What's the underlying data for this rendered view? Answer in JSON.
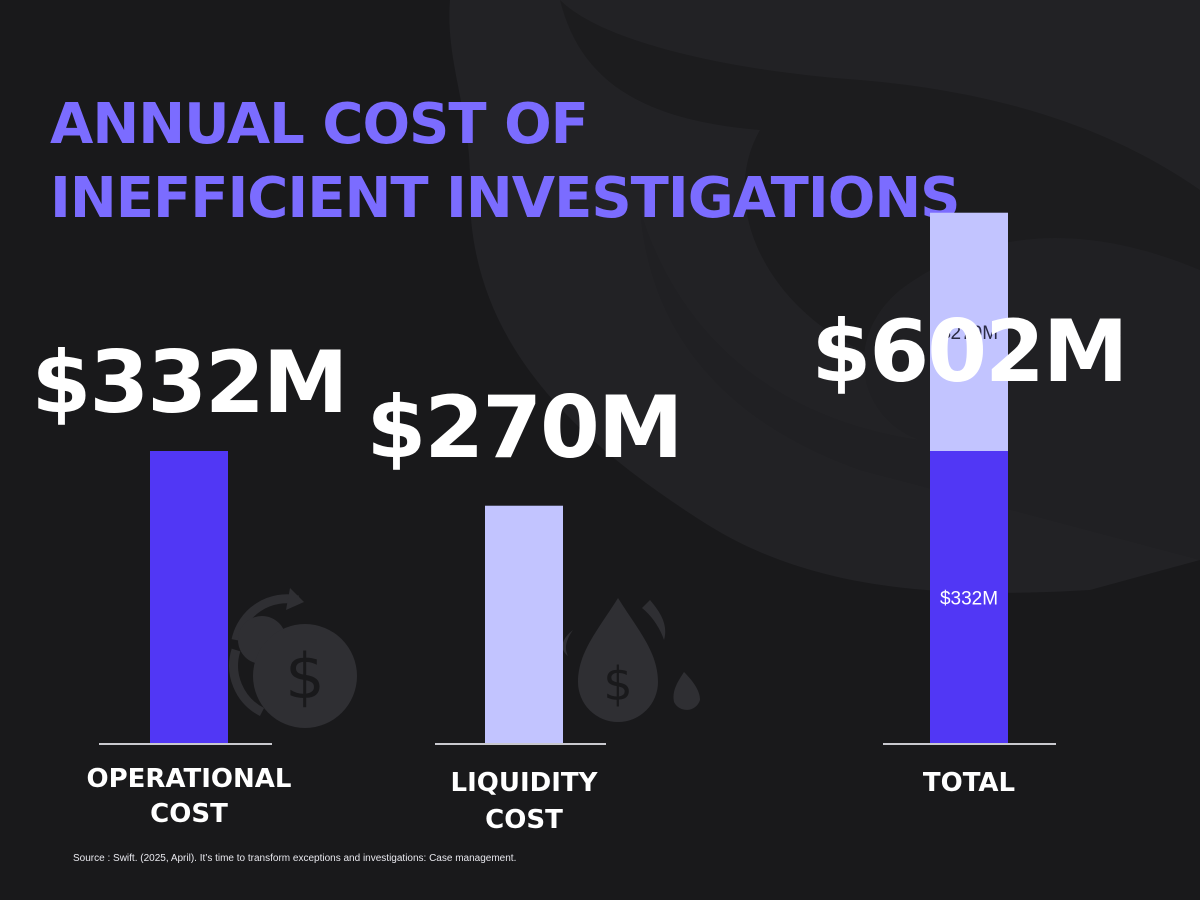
{
  "colors": {
    "background": "#19191b",
    "title": "#7b6cff",
    "operational_bar": "#5137f5",
    "liquidity_bar": "#c2c4ff",
    "baseline": "#c9c9cf",
    "text": "#ffffff"
  },
  "title": {
    "line1": "ANNUAL COST OF",
    "line2": "INEFFICIENT INVESTIGATIONS"
  },
  "icons": {
    "operational": "gear-dollar-cycle-icon",
    "liquidity": "droplet-dollar-icon"
  },
  "chart_data": {
    "type": "bar",
    "unit": "M",
    "categories": [
      {
        "label_lines": [
          "OPERATIONAL",
          "COST"
        ],
        "value": 332,
        "value_label": "$332M",
        "color_key": "operational_bar"
      },
      {
        "label_lines": [
          "LIQUIDITY",
          "COST"
        ],
        "value": 270,
        "value_label": "$270M",
        "color_key": "liquidity_bar"
      }
    ],
    "total": {
      "label": "TOTAL",
      "value": 602,
      "value_label": "$602M",
      "stack": [
        {
          "value": 332,
          "label": "$332M",
          "color_key": "operational_bar"
        },
        {
          "value": 270,
          "label": "$270M",
          "color_key": "liquidity_bar"
        }
      ]
    }
  },
  "source": "Source : Swift. (2025, April). It’s time to transform exceptions and investigations: Case management."
}
